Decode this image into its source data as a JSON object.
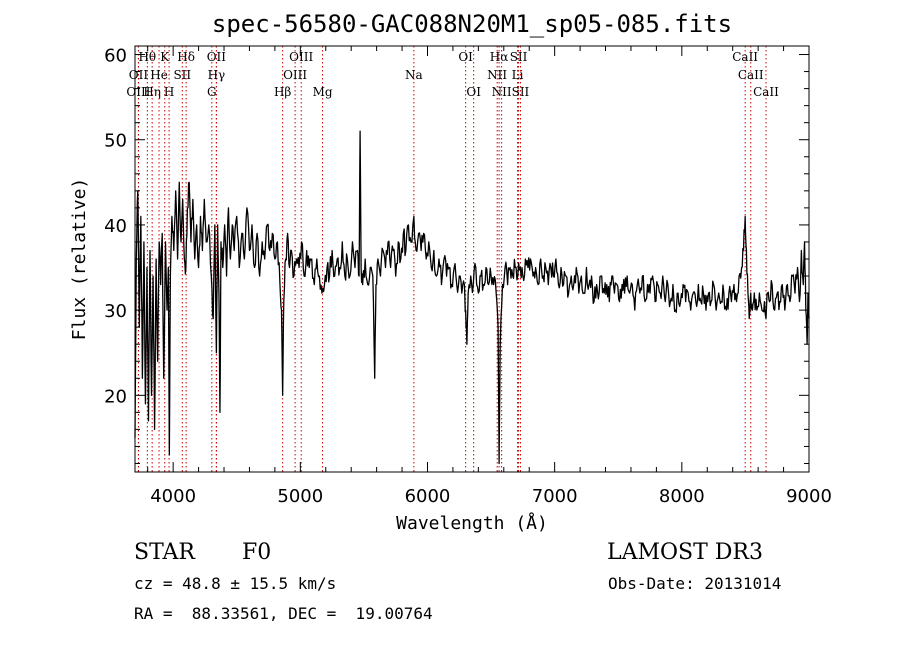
{
  "chart_data": {
    "type": "line",
    "title": "spec-56580-GAC088N20M1_sp05-085.fits",
    "xlabel": "Wavelength (Å)",
    "ylabel": "Flux (relative)",
    "xlim": [
      3700,
      9000
    ],
    "ylim": [
      11,
      61
    ],
    "xticks": [
      4000,
      5000,
      6000,
      7000,
      8000,
      9000
    ],
    "yticks": [
      20,
      30,
      40,
      50,
      60
    ],
    "line_color": "#000000",
    "marker_color": "#cc0000",
    "spectral_lines": [
      {
        "label": "Hθ",
        "x": 3797,
        "row": 0
      },
      {
        "label": "K",
        "x": 3934,
        "row": 0
      },
      {
        "label": "Hδ",
        "x": 4102,
        "row": 0
      },
      {
        "label": "OII",
        "x": 4340,
        "row": 0
      },
      {
        "label": "OIII",
        "x": 5007,
        "row": 0
      },
      {
        "label": "OI",
        "x": 6300,
        "row": 0
      },
      {
        "label": "Hα",
        "x": 6563,
        "row": 0
      },
      {
        "label": "SII",
        "x": 6716,
        "row": 0
      },
      {
        "label": "CaII",
        "x": 8498,
        "row": 0
      },
      {
        "label": "OII",
        "x": 3727,
        "row": 1
      },
      {
        "label": "He",
        "x": 3889,
        "row": 1
      },
      {
        "label": "SII",
        "x": 4072,
        "row": 1
      },
      {
        "label": "Hγ",
        "x": 4340,
        "row": 1
      },
      {
        "label": "OIII",
        "x": 4959,
        "row": 1
      },
      {
        "label": "Na",
        "x": 5893,
        "row": 1
      },
      {
        "label": "NII",
        "x": 6548,
        "row": 1
      },
      {
        "label": "Li",
        "x": 6708,
        "row": 1
      },
      {
        "label": "CaII",
        "x": 8542,
        "row": 1
      },
      {
        "label": "OIII",
        "x": 3727,
        "row": 2
      },
      {
        "label": "Hη",
        "x": 3835,
        "row": 2
      },
      {
        "label": "H",
        "x": 3968,
        "row": 2
      },
      {
        "label": "G",
        "x": 4304,
        "row": 2
      },
      {
        "label": "Hβ",
        "x": 4861,
        "row": 2
      },
      {
        "label": "Mg",
        "x": 5175,
        "row": 2
      },
      {
        "label": "OI",
        "x": 6363,
        "row": 2
      },
      {
        "label": "NII",
        "x": 6583,
        "row": 2
      },
      {
        "label": "SII",
        "x": 6731,
        "row": 2
      },
      {
        "label": "CaII",
        "x": 8662,
        "row": 2
      }
    ],
    "anchors": [
      [
        3700,
        15
      ],
      [
        3710,
        36
      ],
      [
        3722,
        44
      ],
      [
        3734,
        28
      ],
      [
        3746,
        41
      ],
      [
        3758,
        22
      ],
      [
        3770,
        38
      ],
      [
        3782,
        19
      ],
      [
        3794,
        35
      ],
      [
        3806,
        17
      ],
      [
        3818,
        37
      ],
      [
        3830,
        20
      ],
      [
        3842,
        34
      ],
      [
        3854,
        16
      ],
      [
        3866,
        36
      ],
      [
        3878,
        24
      ],
      [
        3890,
        38
      ],
      [
        3902,
        33
      ],
      [
        3914,
        39
      ],
      [
        3926,
        22
      ],
      [
        3940,
        38
      ],
      [
        3952,
        30
      ],
      [
        3962,
        35
      ],
      [
        3970,
        13
      ],
      [
        3978,
        34
      ],
      [
        3990,
        41
      ],
      [
        4005,
        37
      ],
      [
        4020,
        44
      ],
      [
        4035,
        36
      ],
      [
        4048,
        45
      ],
      [
        4062,
        38
      ],
      [
        4075,
        43
      ],
      [
        4088,
        36
      ],
      [
        4100,
        35
      ],
      [
        4112,
        42
      ],
      [
        4126,
        45
      ],
      [
        4140,
        38
      ],
      [
        4155,
        43
      ],
      [
        4170,
        36
      ],
      [
        4185,
        40
      ],
      [
        4200,
        35
      ],
      [
        4215,
        41
      ],
      [
        4230,
        37
      ],
      [
        4245,
        43
      ],
      [
        4260,
        38
      ],
      [
        4280,
        40
      ],
      [
        4300,
        34
      ],
      [
        4315,
        29
      ],
      [
        4328,
        40
      ],
      [
        4340,
        25
      ],
      [
        4350,
        40
      ],
      [
        4360,
        32
      ],
      [
        4368,
        18
      ],
      [
        4376,
        38
      ],
      [
        4390,
        35
      ],
      [
        4405,
        40
      ],
      [
        4420,
        34
      ],
      [
        4435,
        42
      ],
      [
        4450,
        36
      ],
      [
        4465,
        40
      ],
      [
        4480,
        37
      ],
      [
        4500,
        41
      ],
      [
        4520,
        35
      ],
      [
        4540,
        39
      ],
      [
        4560,
        36
      ],
      [
        4580,
        42
      ],
      [
        4600,
        37
      ],
      [
        4620,
        40
      ],
      [
        4640,
        35
      ],
      [
        4660,
        39
      ],
      [
        4680,
        34
      ],
      [
        4700,
        38
      ],
      [
        4720,
        36
      ],
      [
        4740,
        40
      ],
      [
        4760,
        37
      ],
      [
        4780,
        39
      ],
      [
        4800,
        36
      ],
      [
        4820,
        38
      ],
      [
        4840,
        33
      ],
      [
        4852,
        30
      ],
      [
        4861,
        20
      ],
      [
        4870,
        31
      ],
      [
        4885,
        36
      ],
      [
        4900,
        39
      ],
      [
        4915,
        35
      ],
      [
        4930,
        37
      ],
      [
        4950,
        34
      ],
      [
        4970,
        36
      ],
      [
        4990,
        35
      ],
      [
        5010,
        38
      ],
      [
        5030,
        34
      ],
      [
        5050,
        37
      ],
      [
        5070,
        35
      ],
      [
        5090,
        36
      ],
      [
        5110,
        33
      ],
      [
        5130,
        36
      ],
      [
        5150,
        34
      ],
      [
        5170,
        32
      ],
      [
        5190,
        33
      ],
      [
        5210,
        35
      ],
      [
        5230,
        34
      ],
      [
        5250,
        37
      ],
      [
        5270,
        34
      ],
      [
        5290,
        36
      ],
      [
        5310,
        35
      ],
      [
        5330,
        38
      ],
      [
        5350,
        34
      ],
      [
        5370,
        36
      ],
      [
        5390,
        34
      ],
      [
        5410,
        38
      ],
      [
        5430,
        35
      ],
      [
        5450,
        37
      ],
      [
        5462,
        34
      ],
      [
        5470,
        51
      ],
      [
        5478,
        35
      ],
      [
        5490,
        33
      ],
      [
        5510,
        36
      ],
      [
        5530,
        33
      ],
      [
        5550,
        35
      ],
      [
        5570,
        34
      ],
      [
        5585,
        22
      ],
      [
        5595,
        33
      ],
      [
        5610,
        36
      ],
      [
        5630,
        34
      ],
      [
        5650,
        37
      ],
      [
        5670,
        35
      ],
      [
        5690,
        38
      ],
      [
        5710,
        35
      ],
      [
        5730,
        37
      ],
      [
        5750,
        34
      ],
      [
        5770,
        38
      ],
      [
        5790,
        36
      ],
      [
        5810,
        39
      ],
      [
        5830,
        37
      ],
      [
        5850,
        40
      ],
      [
        5870,
        38
      ],
      [
        5893,
        41
      ],
      [
        5910,
        37
      ],
      [
        5930,
        39
      ],
      [
        5950,
        37
      ],
      [
        5970,
        39
      ],
      [
        5990,
        36
      ],
      [
        6010,
        38
      ],
      [
        6030,
        35
      ],
      [
        6050,
        37
      ],
      [
        6070,
        34
      ],
      [
        6090,
        36
      ],
      [
        6110,
        33
      ],
      [
        6130,
        36
      ],
      [
        6150,
        34
      ],
      [
        6170,
        35
      ],
      [
        6190,
        33
      ],
      [
        6210,
        35
      ],
      [
        6230,
        33
      ],
      [
        6250,
        34
      ],
      [
        6270,
        32
      ],
      [
        6290,
        33
      ],
      [
        6300,
        30
      ],
      [
        6310,
        26
      ],
      [
        6320,
        32
      ],
      [
        6340,
        34
      ],
      [
        6360,
        33
      ],
      [
        6380,
        35
      ],
      [
        6400,
        32
      ],
      [
        6420,
        34
      ],
      [
        6440,
        33
      ],
      [
        6460,
        35
      ],
      [
        6480,
        33
      ],
      [
        6500,
        34
      ],
      [
        6520,
        33
      ],
      [
        6540,
        32
      ],
      [
        6555,
        28
      ],
      [
        6563,
        12
      ],
      [
        6572,
        26
      ],
      [
        6590,
        33
      ],
      [
        6610,
        35
      ],
      [
        6630,
        33
      ],
      [
        6650,
        35
      ],
      [
        6670,
        34
      ],
      [
        6690,
        35
      ],
      [
        6710,
        34
      ],
      [
        6730,
        35
      ],
      [
        6750,
        34
      ],
      [
        6770,
        36
      ],
      [
        6790,
        35
      ],
      [
        6810,
        36
      ],
      [
        6830,
        34
      ],
      [
        6850,
        35
      ],
      [
        6870,
        33
      ],
      [
        6890,
        36
      ],
      [
        6910,
        34
      ],
      [
        6930,
        35
      ],
      [
        6950,
        33
      ],
      [
        6970,
        35
      ],
      [
        6990,
        34
      ],
      [
        7010,
        36
      ],
      [
        7030,
        33
      ],
      [
        7050,
        35
      ],
      [
        7070,
        33
      ],
      [
        7090,
        34
      ],
      [
        7110,
        32
      ],
      [
        7130,
        34
      ],
      [
        7150,
        33
      ],
      [
        7170,
        35
      ],
      [
        7190,
        32
      ],
      [
        7210,
        34
      ],
      [
        7230,
        32
      ],
      [
        7250,
        35
      ],
      [
        7270,
        33
      ],
      [
        7290,
        34
      ],
      [
        7310,
        31
      ],
      [
        7330,
        33
      ],
      [
        7350,
        32
      ],
      [
        7370,
        34
      ],
      [
        7390,
        32
      ],
      [
        7410,
        33
      ],
      [
        7430,
        31
      ],
      [
        7450,
        34
      ],
      [
        7470,
        32
      ],
      [
        7490,
        33
      ],
      [
        7510,
        31
      ],
      [
        7530,
        33
      ],
      [
        7550,
        32
      ],
      [
        7570,
        34
      ],
      [
        7590,
        32
      ],
      [
        7610,
        33
      ],
      [
        7630,
        30
      ],
      [
        7650,
        33
      ],
      [
        7670,
        32
      ],
      [
        7690,
        34
      ],
      [
        7710,
        31
      ],
      [
        7730,
        33
      ],
      [
        7750,
        32
      ],
      [
        7770,
        34
      ],
      [
        7790,
        31
      ],
      [
        7810,
        33
      ],
      [
        7830,
        32
      ],
      [
        7850,
        34
      ],
      [
        7870,
        31
      ],
      [
        7890,
        33
      ],
      [
        7910,
        31
      ],
      [
        7930,
        33
      ],
      [
        7950,
        30
      ],
      [
        7970,
        32
      ],
      [
        7990,
        31
      ],
      [
        8010,
        33
      ],
      [
        8030,
        31
      ],
      [
        8050,
        32
      ],
      [
        8070,
        30
      ],
      [
        8090,
        32
      ],
      [
        8110,
        31
      ],
      [
        8130,
        33
      ],
      [
        8150,
        31
      ],
      [
        8170,
        32
      ],
      [
        8190,
        30
      ],
      [
        8210,
        32
      ],
      [
        8230,
        31
      ],
      [
        8250,
        33
      ],
      [
        8270,
        30
      ],
      [
        8290,
        32
      ],
      [
        8310,
        31
      ],
      [
        8330,
        32
      ],
      [
        8350,
        30
      ],
      [
        8370,
        32
      ],
      [
        8390,
        31
      ],
      [
        8410,
        33
      ],
      [
        8430,
        31
      ],
      [
        8450,
        34
      ],
      [
        8470,
        35
      ],
      [
        8485,
        37
      ],
      [
        8498,
        41
      ],
      [
        8508,
        37
      ],
      [
        8520,
        32
      ],
      [
        8530,
        29
      ],
      [
        8542,
        32
      ],
      [
        8555,
        30
      ],
      [
        8570,
        32
      ],
      [
        8590,
        30
      ],
      [
        8610,
        32
      ],
      [
        8630,
        30
      ],
      [
        8650,
        31
      ],
      [
        8662,
        29
      ],
      [
        8675,
        32
      ],
      [
        8690,
        31
      ],
      [
        8710,
        33
      ],
      [
        8730,
        30
      ],
      [
        8750,
        32
      ],
      [
        8770,
        31
      ],
      [
        8790,
        33
      ],
      [
        8810,
        30
      ],
      [
        8830,
        33
      ],
      [
        8850,
        31
      ],
      [
        8870,
        34
      ],
      [
        8890,
        32
      ],
      [
        8910,
        35
      ],
      [
        8925,
        31
      ],
      [
        8940,
        37
      ],
      [
        8955,
        33
      ],
      [
        8965,
        38
      ],
      [
        8975,
        30
      ],
      [
        8985,
        26
      ],
      [
        8992,
        32
      ],
      [
        9000,
        29
      ]
    ]
  },
  "info": {
    "object_type": "STAR",
    "subclass": "F0",
    "survey": "LAMOST DR3",
    "redshift": "cz = 48.8 ± 15.5 km/s",
    "obs_date": "Obs-Date: 20131014",
    "coords": "RA =  88.33561, DEC =  19.00764"
  }
}
